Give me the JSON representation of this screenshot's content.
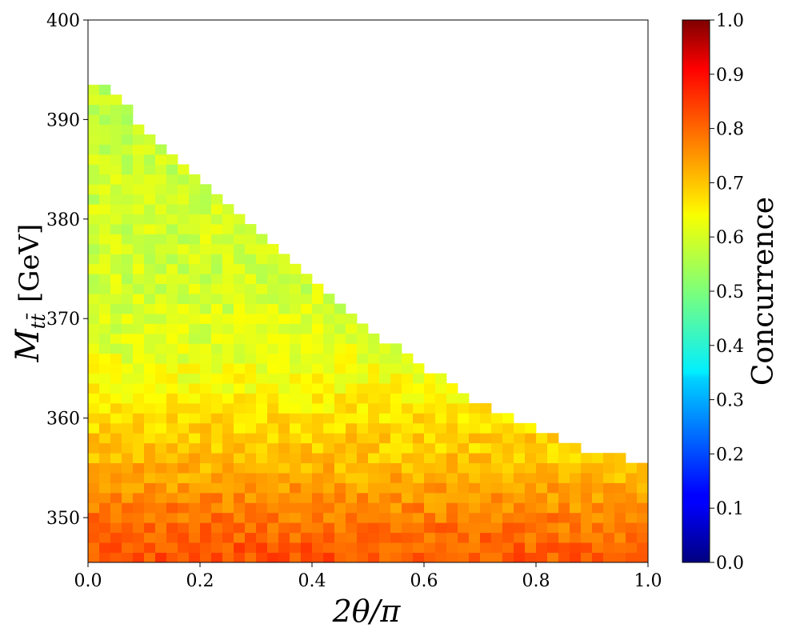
{
  "chart_data": {
    "type": "heatmap",
    "xlabel": "2θ/π",
    "ylabel_main": "M",
    "ylabel_sub": "tt̄",
    "ylabel_unit": "[GeV]",
    "colorbar_label": "Concurrence",
    "colormap": "jet",
    "xlim": [
      0.0,
      1.0
    ],
    "ylim": [
      345.5,
      400
    ],
    "clim": [
      0.0,
      1.0
    ],
    "x_ticks": [
      0.0,
      0.2,
      0.4,
      0.6,
      0.8,
      1.0
    ],
    "x_tick_labels": [
      "0.0",
      "0.2",
      "0.4",
      "0.6",
      "0.8",
      "1.0"
    ],
    "y_ticks": [
      350,
      360,
      370,
      380,
      390,
      400
    ],
    "y_tick_labels": [
      "350",
      "360",
      "370",
      "380",
      "390",
      "400"
    ],
    "colorbar_ticks": [
      0.0,
      0.1,
      0.2,
      0.3,
      0.4,
      0.5,
      0.6,
      0.7,
      0.8,
      0.9,
      1.0
    ],
    "colorbar_tick_labels": [
      "0.0",
      "0.1",
      "0.2",
      "0.3",
      "0.4",
      "0.5",
      "0.6",
      "0.7",
      "0.8",
      "0.9",
      "1.0"
    ],
    "grid": false,
    "x_bins": 50,
    "bin_width_x": 0.02,
    "y_bins": 50,
    "y_start": 345.5,
    "bin_height_y": 1.0,
    "column_max_mass": [
      393.5,
      393.5,
      392.5,
      391.5,
      389.5,
      388.5,
      387.5,
      386.5,
      385.5,
      384.5,
      383.5,
      382.5,
      381.5,
      380.5,
      379.5,
      378.5,
      377.5,
      376.5,
      375.5,
      374.5,
      373.5,
      372.5,
      371.5,
      370.5,
      369.5,
      368.5,
      367.5,
      367.5,
      366.5,
      365.5,
      364.5,
      364.5,
      363.5,
      362.5,
      361.5,
      361.5,
      360.5,
      360.5,
      359.5,
      359.5,
      358.5,
      358.5,
      357.5,
      357.5,
      356.5,
      356.5,
      356.5,
      356.5,
      355.5,
      355.5
    ],
    "value_model": {
      "base": 0.57,
      "gradient": [
        [
          346.5,
          0.8
        ],
        [
          350.5,
          0.76
        ],
        [
          354.5,
          0.71
        ],
        [
          358.5,
          0.67
        ],
        [
          362.5,
          0.63
        ],
        [
          366.5,
          0.6
        ],
        [
          372.5,
          0.58
        ],
        [
          380.5,
          0.58
        ],
        [
          394,
          0.56
        ]
      ],
      "noise": 0.035
    },
    "highlight_cells": [
      {
        "x": 0.01,
        "y": 346.5,
        "value": 0.98
      },
      {
        "x": 0.03,
        "y": 347.5,
        "value": 0.88
      },
      {
        "x": 0.03,
        "y": 346.5,
        "value": 0.78
      },
      {
        "x": 0.05,
        "y": 346.5,
        "value": 0.64
      },
      {
        "x": 0.13,
        "y": 346.5,
        "value": 0.66
      },
      {
        "x": 0.17,
        "y": 346.5,
        "value": 0.87
      },
      {
        "x": 0.01,
        "y": 348.5,
        "value": 0.8
      },
      {
        "x": 0.01,
        "y": 352.5,
        "value": 0.82
      },
      {
        "x": 0.01,
        "y": 364.5,
        "value": 0.82
      },
      {
        "x": 0.01,
        "y": 361.5,
        "value": 0.8
      },
      {
        "x": 0.01,
        "y": 356.5,
        "value": 0.58
      },
      {
        "x": 0.53,
        "y": 364.5,
        "value": 0.5
      },
      {
        "x": 0.61,
        "y": 361.5,
        "value": 0.52
      },
      {
        "x": 0.65,
        "y": 360.5,
        "value": 0.53
      },
      {
        "x": 0.87,
        "y": 357.5,
        "value": 0.65
      },
      {
        "x": 0.23,
        "y": 380.5,
        "value": 0.64
      },
      {
        "x": 0.21,
        "y": 381.5,
        "value": 0.65
      },
      {
        "x": 0.03,
        "y": 392.5,
        "value": 0.55
      },
      {
        "x": 0.01,
        "y": 390.5,
        "value": 0.62
      },
      {
        "x": 0.01,
        "y": 374.5,
        "value": 0.52
      }
    ]
  }
}
